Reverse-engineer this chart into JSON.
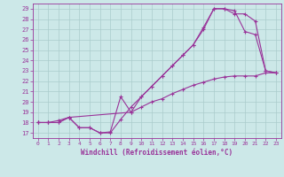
{
  "xlabel": "Windchill (Refroidissement éolien,°C)",
  "xlim": [
    -0.5,
    23.5
  ],
  "ylim": [
    16.5,
    29.5
  ],
  "xticks": [
    0,
    1,
    2,
    3,
    4,
    5,
    6,
    7,
    8,
    9,
    10,
    11,
    12,
    13,
    14,
    15,
    16,
    17,
    18,
    19,
    20,
    21,
    22,
    23
  ],
  "yticks": [
    17,
    18,
    19,
    20,
    21,
    22,
    23,
    24,
    25,
    26,
    27,
    28,
    29
  ],
  "bg_color": "#cce8e8",
  "line_color": "#993399",
  "grid_color": "#aacccc",
  "curve1_x": [
    0,
    1,
    2,
    3,
    4,
    5,
    6,
    7,
    8,
    9,
    10,
    11,
    12,
    13,
    14,
    15,
    16,
    17,
    18,
    19,
    20,
    21,
    22,
    23
  ],
  "curve1_y": [
    18.0,
    18.0,
    18.2,
    18.5,
    17.5,
    17.5,
    17.0,
    17.1,
    20.5,
    19.0,
    20.5,
    21.5,
    22.5,
    23.5,
    24.5,
    25.5,
    27.2,
    29.0,
    29.0,
    28.8,
    26.8,
    26.5,
    23.0,
    22.8
  ],
  "curve2_x": [
    0,
    1,
    2,
    3,
    4,
    5,
    6,
    7,
    8,
    9,
    10,
    11,
    12,
    13,
    14,
    15,
    16,
    17,
    18,
    19,
    20,
    21,
    22,
    23
  ],
  "curve2_y": [
    18.0,
    18.0,
    18.0,
    18.5,
    17.5,
    17.5,
    17.0,
    17.0,
    18.3,
    19.5,
    20.5,
    21.5,
    22.5,
    23.5,
    24.5,
    25.5,
    27.0,
    29.0,
    29.0,
    28.5,
    28.5,
    27.8,
    23.0,
    22.8
  ],
  "curve3_x": [
    0,
    1,
    2,
    3,
    9,
    10,
    11,
    12,
    13,
    14,
    15,
    16,
    17,
    18,
    19,
    20,
    21,
    22,
    23
  ],
  "curve3_y": [
    18.0,
    18.0,
    18.0,
    18.5,
    19.0,
    19.5,
    20.0,
    20.3,
    20.8,
    21.2,
    21.6,
    21.9,
    22.2,
    22.4,
    22.5,
    22.5,
    22.5,
    22.8,
    22.8
  ]
}
